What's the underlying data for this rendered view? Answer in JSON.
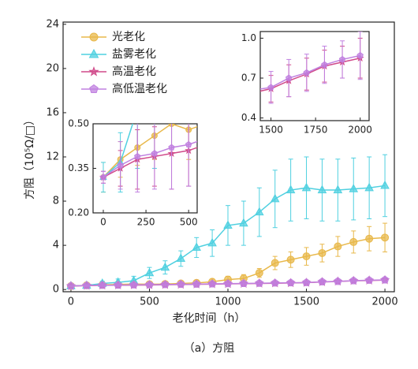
{
  "chart_data": {
    "type": "line",
    "caption": "（a）方阻",
    "xlabel": "老化时间（h）",
    "ylabel": "方阻（10⁵Ω/□）",
    "x": [
      0,
      100,
      200,
      300,
      400,
      500,
      600,
      700,
      800,
      900,
      1000,
      1100,
      1200,
      1300,
      1400,
      1500,
      1600,
      1700,
      1800,
      1900,
      2000
    ],
    "series": [
      {
        "name": "光老化",
        "color": "#e8b84a",
        "marker": "circle",
        "values": [
          0.32,
          0.38,
          0.42,
          0.46,
          0.5,
          0.48,
          0.5,
          0.55,
          0.6,
          0.7,
          0.9,
          1.0,
          1.5,
          2.4,
          2.7,
          3.0,
          3.3,
          3.9,
          4.3,
          4.6,
          4.7
        ],
        "errors": [
          0.05,
          0.06,
          0.06,
          0.08,
          0.1,
          0.1,
          0.12,
          0.15,
          0.2,
          0.25,
          0.3,
          0.35,
          0.4,
          0.6,
          0.7,
          0.8,
          0.8,
          0.9,
          1.0,
          1.1,
          1.3
        ]
      },
      {
        "name": "盐雾老化",
        "color": "#4fd0e0",
        "marker": "triangle",
        "values": [
          0.32,
          0.37,
          0.55,
          0.65,
          0.8,
          1.5,
          2.0,
          2.8,
          3.8,
          4.2,
          5.8,
          6.0,
          7.0,
          8.2,
          9.0,
          9.2,
          9.0,
          9.0,
          9.1,
          9.2,
          9.4
        ],
        "errors": [
          0.05,
          0.1,
          0.2,
          0.3,
          0.4,
          0.5,
          0.6,
          0.7,
          0.9,
          1.2,
          1.8,
          2.0,
          2.2,
          2.6,
          2.8,
          2.8,
          2.8,
          2.8,
          2.8,
          2.8,
          2.8
        ]
      },
      {
        "name": "高温老化",
        "color": "#d04a8a",
        "marker": "star",
        "values": [
          0.32,
          0.35,
          0.38,
          0.39,
          0.4,
          0.41,
          0.43,
          0.45,
          0.47,
          0.49,
          0.51,
          0.53,
          0.55,
          0.57,
          0.59,
          0.62,
          0.68,
          0.73,
          0.79,
          0.82,
          0.85
        ],
        "errors": [
          0.02,
          0.06,
          0.1,
          0.1,
          0.12,
          0.12,
          0.12,
          0.12,
          0.12,
          0.12,
          0.12,
          0.12,
          0.12,
          0.12,
          0.12,
          0.1,
          0.12,
          0.12,
          0.12,
          0.12,
          0.15
        ]
      },
      {
        "name": "高低温老化",
        "color": "#c080e0",
        "marker": "pentagon",
        "values": [
          0.32,
          0.36,
          0.39,
          0.4,
          0.42,
          0.43,
          0.45,
          0.47,
          0.49,
          0.51,
          0.53,
          0.55,
          0.57,
          0.59,
          0.61,
          0.63,
          0.7,
          0.74,
          0.8,
          0.84,
          0.87
        ],
        "errors": [
          0.02,
          0.08,
          0.12,
          0.12,
          0.14,
          0.14,
          0.14,
          0.14,
          0.14,
          0.14,
          0.14,
          0.14,
          0.14,
          0.14,
          0.14,
          0.12,
          0.14,
          0.14,
          0.14,
          0.14,
          0.18
        ]
      }
    ],
    "xlim": [
      -50,
      2060
    ],
    "ylim": [
      -0.2,
      24.2
    ],
    "xticks": [
      0,
      500,
      1000,
      1500,
      2000
    ],
    "yticks": [
      0,
      4,
      8,
      12,
      16,
      20,
      24
    ],
    "insets": [
      {
        "xlim": [
          -60,
          550
        ],
        "ylim": [
          0.2,
          0.5
        ],
        "xticks": [
          0,
          250,
          500
        ],
        "yticks": [
          {
            "value": 0.2,
            "label": "0.20"
          },
          0.35,
          {
            "value": 0.5,
            "label": "0.50"
          }
        ]
      },
      {
        "xlim": [
          1440,
          2050
        ],
        "ylim": [
          0.38,
          1.05
        ],
        "xticks": [
          1500,
          1750,
          2000
        ],
        "yticks": [
          0.4,
          0.7,
          {
            "value": 1.0,
            "label": "1.0"
          }
        ]
      }
    ]
  }
}
